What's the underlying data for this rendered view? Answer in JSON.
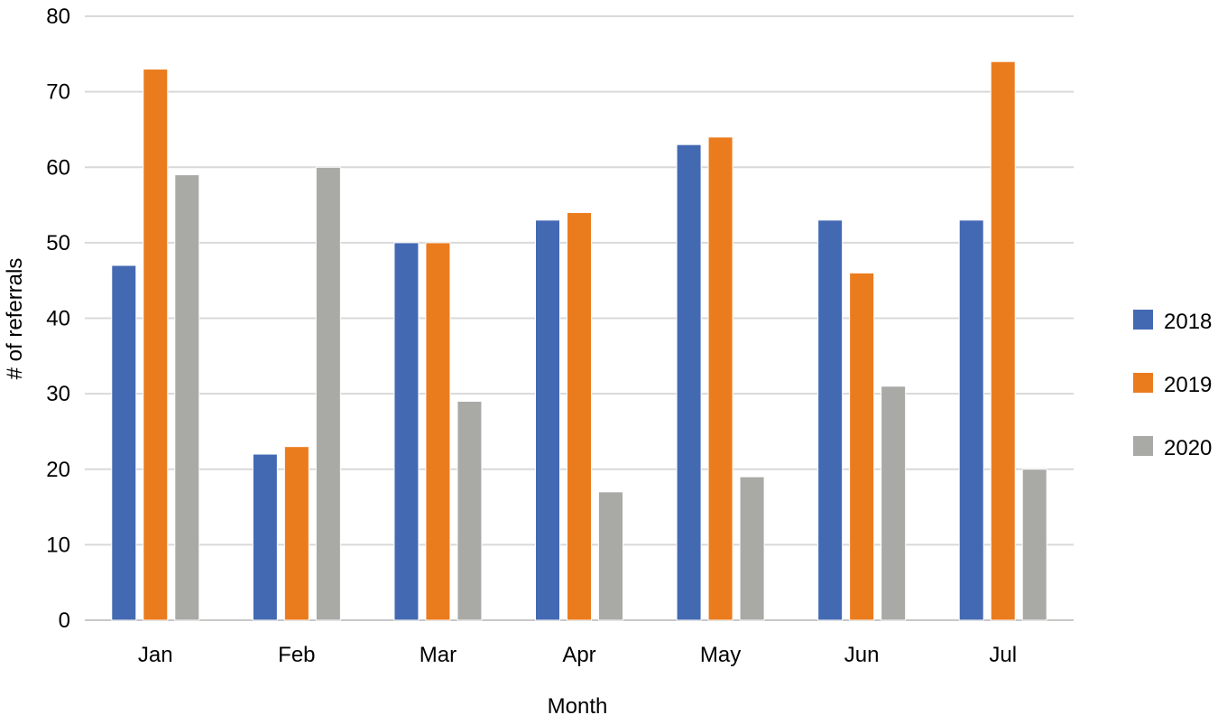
{
  "chart_data": {
    "type": "bar",
    "title": "",
    "xlabel": "Month",
    "ylabel": "# of referrals",
    "categories": [
      "Jan",
      "Feb",
      "Mar",
      "Apr",
      "May",
      "Jun",
      "Jul"
    ],
    "series": [
      {
        "name": "2018",
        "color": "#4369B3",
        "values": [
          47,
          22,
          50,
          53,
          63,
          53,
          53
        ]
      },
      {
        "name": "2019",
        "color": "#EB7C1E",
        "values": [
          73,
          23,
          50,
          54,
          64,
          46,
          74
        ]
      },
      {
        "name": "2020",
        "color": "#A9A9A6",
        "values": [
          59,
          60,
          29,
          17,
          19,
          31,
          20
        ]
      }
    ],
    "ylim": [
      0,
      80
    ],
    "yticks": [
      "0",
      "10",
      "20",
      "30",
      "40",
      "50",
      "60",
      "70",
      "80"
    ],
    "grid": true,
    "legend_position": "right"
  }
}
